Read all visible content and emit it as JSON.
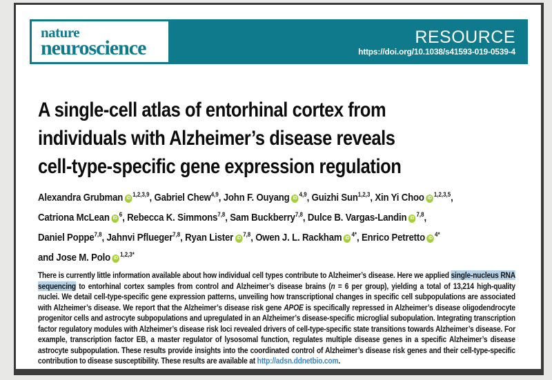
{
  "colors": {
    "teal": "#0e7a8b",
    "frame": "#3a3a3a",
    "link_blue": "#3b82c4",
    "highlight_blue": "#b5d3e8",
    "orcid_green": "#a6ce39"
  },
  "icons": {
    "orcid_label": "iD"
  },
  "journal": {
    "name_line1": "nature",
    "name_line2": "neuroscience",
    "article_type": "RESOURCE",
    "doi": "https://doi.org/10.1038/s41593-019-0539-4"
  },
  "article": {
    "title_lines": [
      "A single-cell atlas of entorhinal cortex from",
      "individuals with Alzheimer’s disease reveals",
      "cell-type-specific gene expression regulation"
    ]
  },
  "authors": {
    "lines": [
      [
        {
          "name": "Alexandra Grubman",
          "orcid": true,
          "sup": "1,2,3,9",
          "sep": ", "
        },
        {
          "name": "Gabriel Chew",
          "orcid": false,
          "sup": "4,9",
          "sep": ", "
        },
        {
          "name": "John F. Ouyang",
          "orcid": true,
          "sup": "4,9",
          "sep": ", "
        },
        {
          "name": "Guizhi Sun",
          "orcid": false,
          "sup": "1,2,3",
          "sep": ", "
        },
        {
          "name": "Xin Yi Choo",
          "orcid": true,
          "sup": "1,2,3,5",
          "sep": ","
        }
      ],
      [
        {
          "name": "Catriona McLean",
          "orcid": true,
          "sup": "6",
          "sep": ", "
        },
        {
          "name": "Rebecca K. Simmons",
          "orcid": false,
          "sup": "7,8",
          "sep": ", "
        },
        {
          "name": "Sam Buckberry",
          "orcid": false,
          "sup": "7,8",
          "sep": ", "
        },
        {
          "name": "Dulce B. Vargas-Landin",
          "orcid": true,
          "sup": "7,8",
          "sep": ","
        }
      ],
      [
        {
          "name": "Daniel Poppe",
          "orcid": false,
          "sup": "7,8",
          "sep": ", "
        },
        {
          "name": "Jahnvi Pflueger",
          "orcid": false,
          "sup": "7,8",
          "sep": ", "
        },
        {
          "name": "Ryan Lister",
          "orcid": true,
          "sup": "7,8",
          "sep": ", "
        },
        {
          "name": "Owen J. L. Rackham",
          "orcid": true,
          "sup": "4*",
          "sep": ", "
        },
        {
          "name": "Enrico Petretto",
          "orcid": true,
          "sup": "4*",
          "sep": ""
        }
      ],
      [
        {
          "name": "and Jose M. Polo",
          "orcid": true,
          "sup": "1,2,3*",
          "sep": ""
        }
      ]
    ]
  },
  "abstract": {
    "segments": [
      {
        "style": "normal",
        "text": "There is currently little information available about how individual cell types contribute to Alzheimer’s disease. Here we applied "
      },
      {
        "style": "highlight",
        "text": "single-nucleus RNA sequencing"
      },
      {
        "style": "normal",
        "text": " to entorhinal cortex samples from control and Alzheimer’s disease brains ("
      },
      {
        "style": "italic",
        "text": "n"
      },
      {
        "style": "normal",
        "text": " = 6 per group), yielding a total of 13,214 high-quality nuclei. We detail cell-type-specific gene expression patterns, unveiling how transcriptional changes in specific cell subpopulations are associated with Alzheimer’s disease. We report that the Alzheimer’s disease risk gene "
      },
      {
        "style": "italic",
        "text": "APOE"
      },
      {
        "style": "normal",
        "text": " is specifically repressed in Alzheimer’s disease oligodendrocyte progenitor cells and astrocyte subpopulations and upregulated in an Alzheimer’s disease-specific microglial subopulation. Integrating transcription factor regulatory modules with Alzheimer’s disease risk loci revealed drivers of cell-type-specific state transitions towards Alzheimer’s disease. For example, transcription factor EB, a master regulator of lysosomal function, regulates multiple disease genes in a specific Alzheimer’s disease astrocyte subpopulation. These results provide insights into the coordinated control of Alzheimer’s disease risk genes and their cell-type-specific contribution to disease susceptibility. These results are available at "
      },
      {
        "style": "link",
        "text": "http://adsn.ddnetbio.com"
      },
      {
        "style": "normal",
        "text": "."
      }
    ]
  }
}
